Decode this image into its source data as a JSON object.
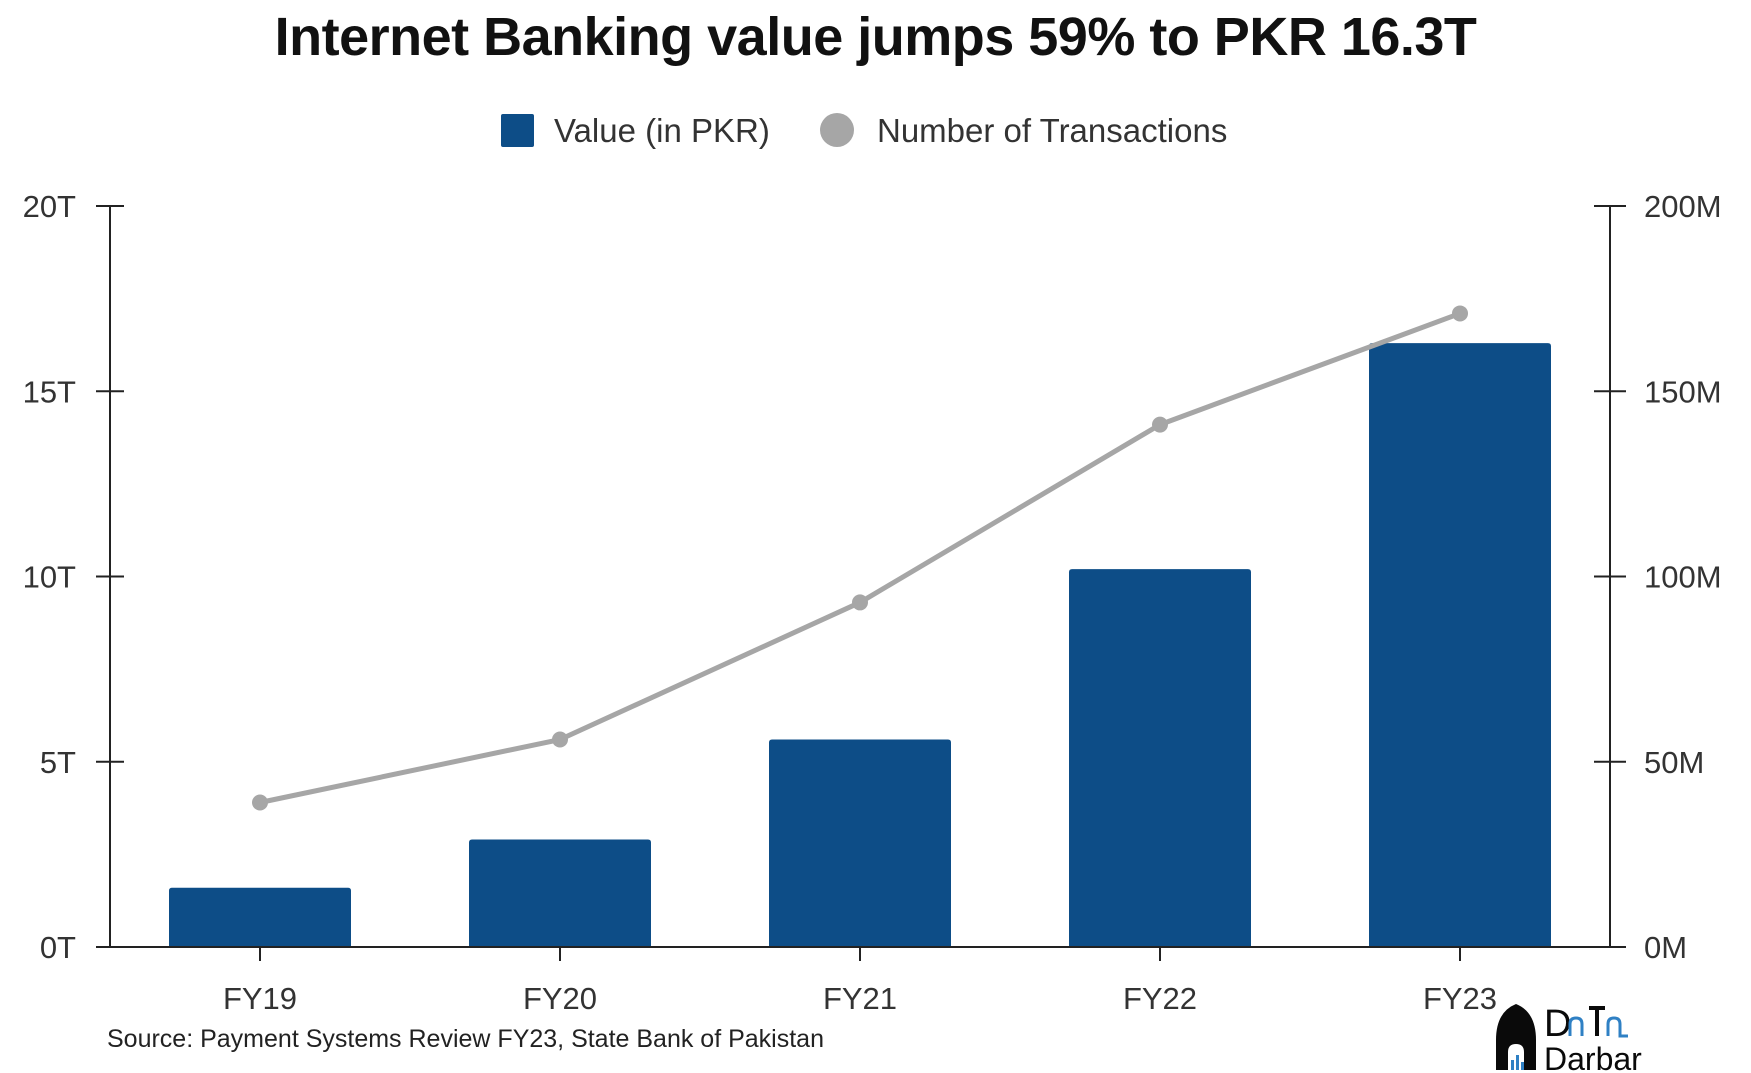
{
  "title": "Internet Banking value jumps 59% to PKR 16.3T",
  "source": "Source: Payment Systems Review FY23, State Bank of Pakistan",
  "logo": {
    "line1": "Data",
    "line2": "Darbar"
  },
  "colors": {
    "bar": "#0d4d87",
    "line": "#a6a6a6",
    "axis": "#222222"
  },
  "chart_data": {
    "type": "bar",
    "categories": [
      "FY19",
      "FY20",
      "FY21",
      "FY22",
      "FY23"
    ],
    "series": [
      {
        "name": "Value (in PKR)",
        "type": "bar",
        "axis": "left",
        "values": [
          1.6,
          2.9,
          5.6,
          10.2,
          16.3
        ]
      },
      {
        "name": "Number of Transactions",
        "type": "line",
        "axis": "right",
        "values": [
          39,
          56,
          93,
          141,
          171
        ]
      }
    ],
    "left_axis": {
      "ylim": [
        0,
        20
      ],
      "ticks": [
        0,
        5,
        10,
        15,
        20
      ],
      "tick_labels": [
        "0T",
        "5T",
        "10T",
        "15T",
        "20T"
      ]
    },
    "right_axis": {
      "ylim": [
        0,
        200
      ],
      "ticks": [
        0,
        50,
        100,
        150,
        200
      ],
      "tick_labels": [
        "0M",
        "50M",
        "100M",
        "150M",
        "200M"
      ]
    },
    "legend_position": "top",
    "grid": false
  }
}
